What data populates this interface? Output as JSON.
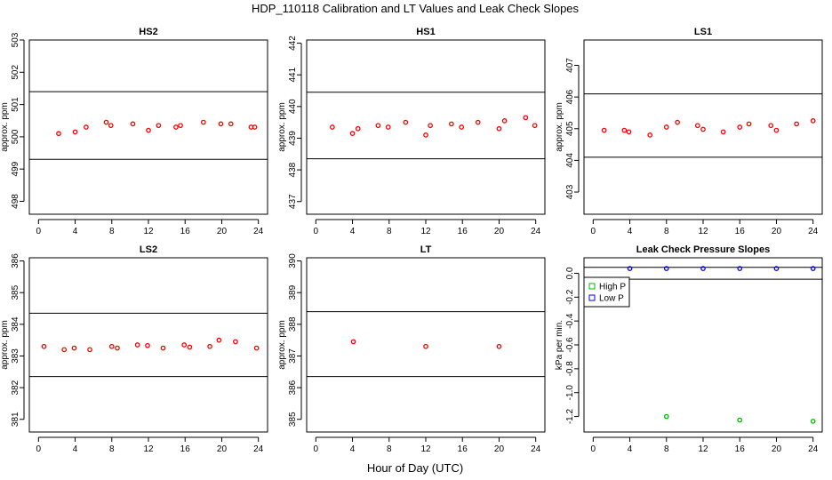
{
  "figure": {
    "title": "HDP_110118  Calibration and LT Values and Leak Check Slopes",
    "xlabel": "Hour of Day (UTC)"
  },
  "colors": {
    "points": "#ff0000",
    "high_p": "#00bb00",
    "low_p": "#0000ee",
    "lines": "#000000"
  },
  "chart_data": [
    {
      "type": "scatter",
      "title": "HS2",
      "ylabel": "approx. ppm",
      "xlim": [
        -1,
        25
      ],
      "ylim": [
        497.6,
        503.0
      ],
      "xticks": [
        0,
        4,
        8,
        12,
        16,
        20,
        24
      ],
      "yticks": [
        498,
        499,
        500,
        501,
        502,
        503
      ],
      "hlines": [
        499.3,
        501.4
      ],
      "x": [
        2.2,
        4.0,
        5.2,
        7.4,
        7.9,
        10.3,
        12.0,
        13.1,
        15.0,
        15.5,
        18.0,
        19.9,
        21.0,
        23.2,
        23.6
      ],
      "y": [
        500.1,
        500.15,
        500.3,
        500.45,
        500.35,
        500.4,
        500.2,
        500.35,
        500.3,
        500.35,
        500.45,
        500.4,
        500.4,
        500.3,
        500.3
      ]
    },
    {
      "type": "scatter",
      "title": "HS1",
      "ylabel": "approx. ppm",
      "xlim": [
        -1,
        25
      ],
      "ylim": [
        436.6,
        442.1
      ],
      "xticks": [
        0,
        4,
        8,
        12,
        16,
        20,
        24
      ],
      "yticks": [
        437,
        438,
        439,
        440,
        441,
        442
      ],
      "hlines": [
        438.35,
        440.45
      ],
      "x": [
        1.8,
        4.0,
        4.6,
        6.8,
        7.9,
        9.8,
        12.0,
        12.5,
        14.8,
        15.9,
        17.7,
        20.0,
        20.6,
        22.9,
        23.9
      ],
      "y": [
        439.35,
        439.15,
        439.3,
        439.4,
        439.35,
        439.5,
        439.1,
        439.4,
        439.45,
        439.35,
        439.5,
        439.3,
        439.55,
        439.65,
        439.4
      ]
    },
    {
      "type": "scatter",
      "title": "LS1",
      "ylabel": "approx. ppm",
      "xlim": [
        -1,
        25
      ],
      "ylim": [
        402.3,
        407.8
      ],
      "xticks": [
        0,
        4,
        8,
        12,
        16,
        20,
        24
      ],
      "yticks": [
        403,
        404,
        405,
        406,
        407
      ],
      "hlines": [
        404.1,
        406.1
      ],
      "x": [
        1.2,
        3.4,
        3.9,
        6.2,
        8.0,
        9.2,
        11.4,
        12.0,
        14.2,
        16.0,
        17.0,
        19.4,
        20.0,
        22.2,
        24.0
      ],
      "y": [
        404.95,
        404.95,
        404.9,
        404.8,
        405.05,
        405.2,
        405.1,
        404.98,
        404.9,
        405.05,
        405.15,
        405.1,
        404.95,
        405.15,
        405.25
      ]
    },
    {
      "type": "scatter",
      "title": "LS2",
      "ylabel": "approx. ppm",
      "xlim": [
        -1,
        25
      ],
      "ylim": [
        380.6,
        386.1
      ],
      "xticks": [
        0,
        4,
        8,
        12,
        16,
        20,
        24
      ],
      "yticks": [
        381,
        382,
        383,
        384,
        385,
        386
      ],
      "hlines": [
        382.35,
        384.35
      ],
      "x": [
        0.6,
        2.8,
        3.9,
        5.6,
        8.0,
        8.6,
        10.8,
        11.9,
        13.6,
        15.9,
        16.5,
        18.7,
        19.7,
        21.5,
        23.8
      ],
      "y": [
        383.3,
        383.2,
        383.25,
        383.2,
        383.3,
        383.25,
        383.35,
        383.33,
        383.25,
        383.35,
        383.28,
        383.3,
        383.5,
        383.45,
        383.25
      ]
    },
    {
      "type": "scatter",
      "title": "LT",
      "ylabel": "approx. ppm",
      "xlim": [
        -1,
        25
      ],
      "ylim": [
        384.6,
        390.1
      ],
      "xticks": [
        0,
        4,
        8,
        12,
        16,
        20,
        24
      ],
      "yticks": [
        385,
        386,
        387,
        388,
        389,
        390
      ],
      "hlines": [
        386.35,
        388.4
      ],
      "x": [
        4.1,
        12.0,
        20.0
      ],
      "y": [
        387.45,
        387.3,
        387.3
      ]
    },
    {
      "type": "scatter",
      "title": "Leak Check Pressure Slopes",
      "ylabel": "kPa per min.",
      "xlim": [
        -1,
        25
      ],
      "ylim": [
        -1.33,
        0.13
      ],
      "xticks": [
        0,
        4,
        8,
        12,
        16,
        20,
        24
      ],
      "yticks": [
        -1.2,
        -1.0,
        -0.8,
        -0.6,
        -0.4,
        -0.2,
        0.0
      ],
      "yticklabels": [
        "-1.2",
        "-1.0",
        "-0.8",
        "-0.6",
        "-0.4",
        "-0.2",
        "0.0"
      ],
      "hlines": [
        0.05,
        -0.05
      ],
      "legend": {
        "position": "top-left",
        "entries": [
          "High P",
          "Low P"
        ]
      },
      "series": [
        {
          "name": "High P",
          "x": [
            8,
            16,
            24
          ],
          "y": [
            -1.2,
            -1.23,
            -1.24
          ]
        },
        {
          "name": "Low P",
          "x": [
            4,
            8,
            12,
            16,
            20,
            24
          ],
          "y": [
            0.04,
            0.04,
            0.04,
            0.04,
            0.04,
            0.04
          ]
        }
      ]
    }
  ]
}
